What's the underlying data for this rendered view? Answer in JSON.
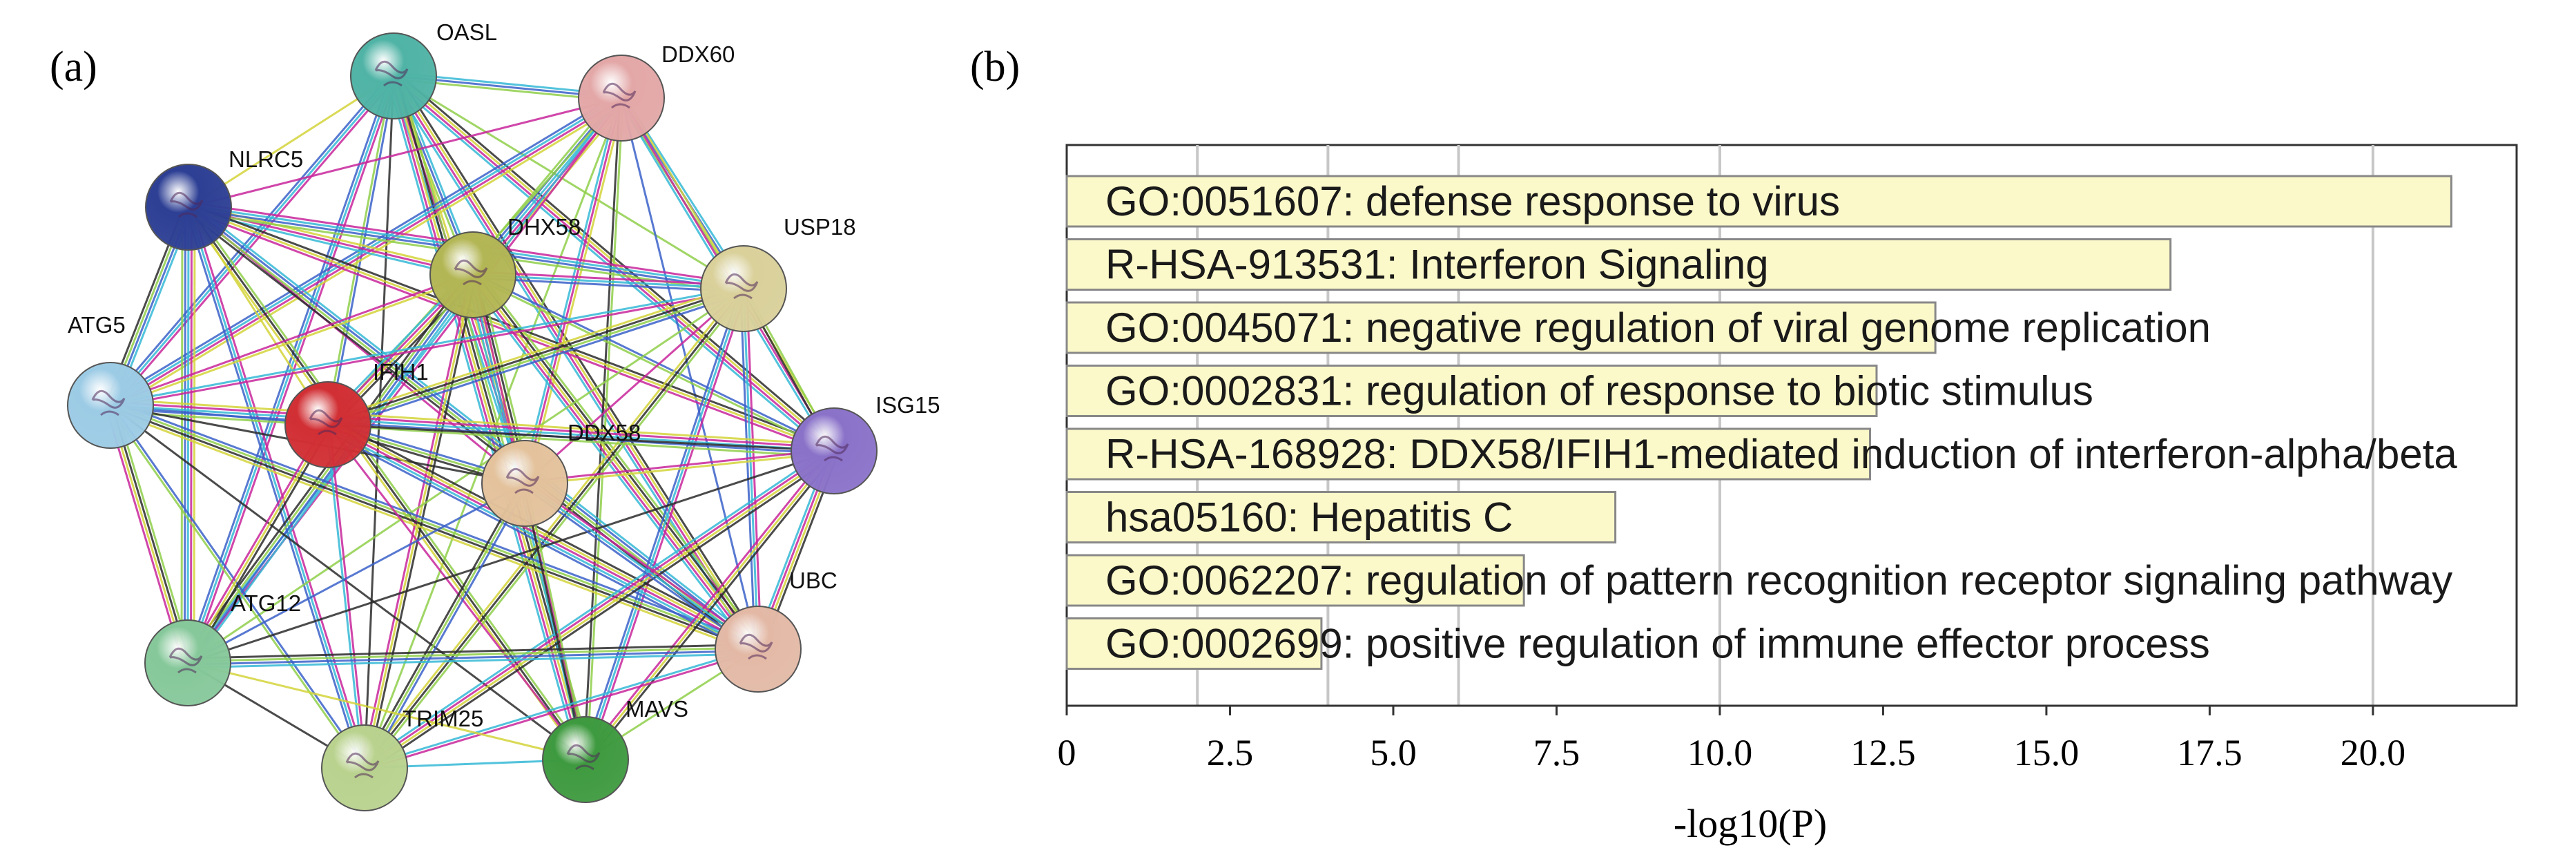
{
  "panels": {
    "a_label": "(a)",
    "b_label": "(b)"
  },
  "network": {
    "nodes": [
      {
        "id": "OASL",
        "label": "OASL",
        "color": "#4fb3a5"
      },
      {
        "id": "DDX60",
        "label": "DDX60",
        "color": "#e3a7a7"
      },
      {
        "id": "NLRC5",
        "label": "NLRC5",
        "color": "#2d3f94"
      },
      {
        "id": "DHX58",
        "label": "DHX58",
        "color": "#b3b654"
      },
      {
        "id": "USP18",
        "label": "USP18",
        "color": "#d9d09a"
      },
      {
        "id": "ATG5",
        "label": "ATG5",
        "color": "#9ccbe5"
      },
      {
        "id": "IFIH1",
        "label": "IFIH1",
        "color": "#d12f34"
      },
      {
        "id": "ISG15",
        "label": "ISG15",
        "color": "#8a72c9"
      },
      {
        "id": "DDX58",
        "label": "DDX58",
        "color": "#e3c29c"
      },
      {
        "id": "UBC",
        "label": "UBC",
        "color": "#e3b9a6"
      },
      {
        "id": "ATG12",
        "label": "ATG12",
        "color": "#86c89a"
      },
      {
        "id": "TRIM25",
        "label": "TRIM25",
        "color": "#b9d28e"
      },
      {
        "id": "MAVS",
        "label": "MAVS",
        "color": "#3e9a3f"
      }
    ]
  },
  "chart_data": {
    "type": "bar",
    "orientation": "horizontal",
    "categories": [
      "GO:0051607: defense response to virus",
      "R-HSA-913531: Interferon Signaling",
      "GO:0045071: negative regulation of viral genome replication",
      "GO:0002831: regulation of response to biotic stimulus",
      "R-HSA-168928: DDX58/IFIH1-mediated induction of interferon-alpha/beta",
      "hsa05160: Hepatitis C",
      "GO:0062207: regulation of pattern recognition receptor signaling pathway",
      "GO:0002699: positive regulation of immune effector process"
    ],
    "values": [
      21.2,
      16.9,
      13.3,
      12.4,
      12.3,
      8.4,
      7.0,
      3.9
    ],
    "xlabel": "-log10(P)",
    "xlim": [
      0,
      22.2
    ],
    "xticks": [
      0,
      2.5,
      5.0,
      7.5,
      10.0,
      12.5,
      15.0,
      17.5,
      20.0
    ],
    "xtick_labels": [
      "0",
      "2.5",
      "5.0",
      "7.5",
      "10.0",
      "12.5",
      "15.0",
      "17.5",
      "20.0"
    ],
    "gridlines_x": [
      2,
      4,
      6,
      10,
      20
    ],
    "grid": true,
    "bar_color": "#fbf8c9",
    "bar_edge": "#888888"
  }
}
